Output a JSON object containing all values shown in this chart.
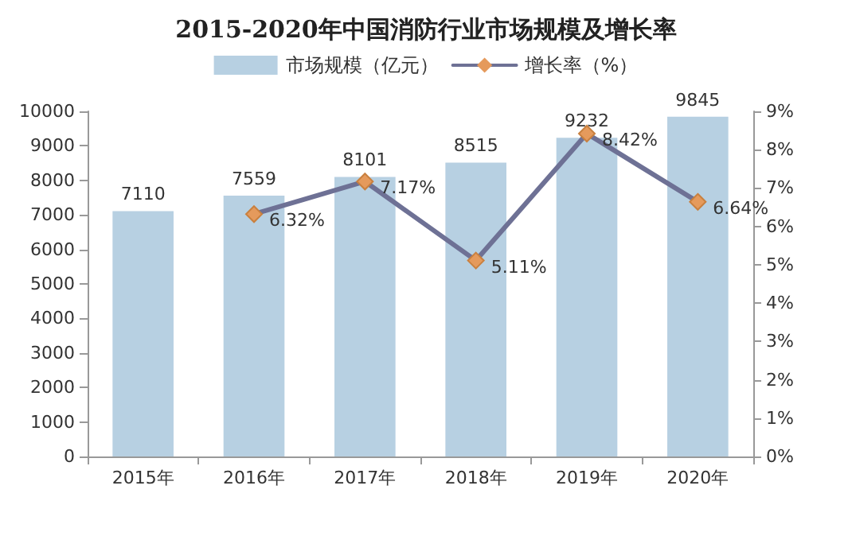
{
  "chart_data": {
    "type": "bar",
    "title": "2015-2020年中国消防行业市场规模及增长率",
    "categories": [
      "2015年",
      "2016年",
      "2017年",
      "2018年",
      "2019年",
      "2020年"
    ],
    "series": [
      {
        "name": "市场规模（亿元）",
        "color": "#b7d0e2",
        "values": [
          7110,
          7559,
          8101,
          8515,
          9232,
          9845
        ],
        "value_labels": [
          "7110",
          "7559",
          "8101",
          "8515",
          "9232",
          "9845"
        ]
      },
      {
        "name": "增长率（%）",
        "type": "line",
        "axis": "y2",
        "color": "#6e7195",
        "marker": "diamond",
        "line_style": "solid",
        "values": [
          null,
          6.32,
          7.17,
          5.11,
          8.42,
          6.64
        ],
        "value_labels": [
          null,
          "6.32%",
          "7.17%",
          "5.11%",
          "8.42%",
          "6.64%"
        ]
      }
    ],
    "ylim": [
      0,
      10000
    ],
    "yticks": [
      0,
      1000,
      2000,
      3000,
      4000,
      5000,
      6000,
      7000,
      8000,
      9000,
      10000
    ],
    "y2lim": [
      0,
      9
    ],
    "y2ticks": [
      {
        "value": 0,
        "label": "0%"
      },
      {
        "value": 1,
        "label": "1%"
      },
      {
        "value": 2,
        "label": "2%"
      },
      {
        "value": 3,
        "label": "3%"
      },
      {
        "value": 4,
        "label": "4%"
      },
      {
        "value": 5,
        "label": "5%"
      },
      {
        "value": 6,
        "label": "6%"
      },
      {
        "value": 7,
        "label": "7%"
      },
      {
        "value": 8,
        "label": "8%"
      },
      {
        "value": 9,
        "label": "9%"
      }
    ],
    "legend": "top",
    "grid": false
  }
}
